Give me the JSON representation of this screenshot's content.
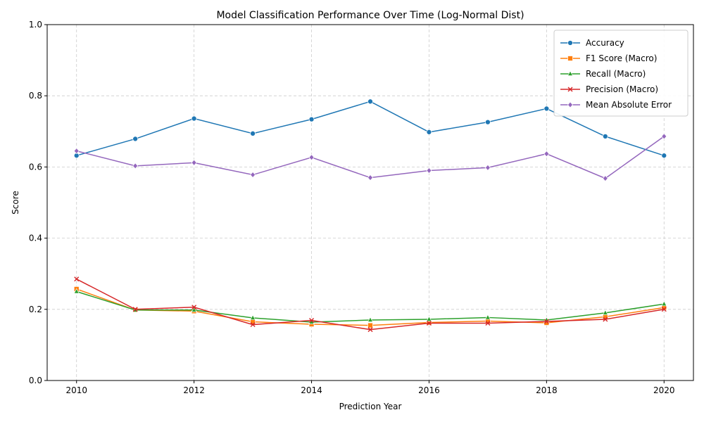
{
  "chart_data": {
    "type": "line",
    "title": "Model Classification Performance Over Time (Log-Normal Dist)",
    "xlabel": "Prediction Year",
    "ylabel": "Score",
    "x": [
      2010,
      2011,
      2012,
      2013,
      2014,
      2015,
      2016,
      2017,
      2018,
      2019,
      2020
    ],
    "xlim": [
      2009.5,
      2020.5
    ],
    "ylim": [
      0,
      1
    ],
    "xticks": [
      2010,
      2012,
      2014,
      2016,
      2018,
      2020
    ],
    "yticks": [
      0.0,
      0.2,
      0.4,
      0.6,
      0.8,
      1.0
    ],
    "ytick_labels": [
      "0.0",
      "0.2",
      "0.4",
      "0.6",
      "0.8",
      "1.0"
    ],
    "grid": true,
    "legend_position": "top-right",
    "series": [
      {
        "name": "Accuracy",
        "color": "#1f77b4",
        "marker": "circle",
        "values": [
          0.632,
          0.679,
          0.736,
          0.694,
          0.734,
          0.784,
          0.698,
          0.726,
          0.764,
          0.686,
          0.632
        ]
      },
      {
        "name": "F1 Score (Macro)",
        "color": "#ff7f0e",
        "marker": "square",
        "values": [
          0.257,
          0.198,
          0.195,
          0.165,
          0.158,
          0.155,
          0.163,
          0.167,
          0.162,
          0.179,
          0.205
        ]
      },
      {
        "name": "Recall (Macro)",
        "color": "#2ca02c",
        "marker": "triangle",
        "values": [
          0.25,
          0.198,
          0.198,
          0.176,
          0.164,
          0.17,
          0.172,
          0.177,
          0.17,
          0.19,
          0.215
        ]
      },
      {
        "name": "Precision (Macro)",
        "color": "#d62728",
        "marker": "x",
        "values": [
          0.285,
          0.2,
          0.206,
          0.157,
          0.169,
          0.143,
          0.161,
          0.161,
          0.166,
          0.172,
          0.2
        ]
      },
      {
        "name": "Mean Absolute Error",
        "color": "#9467bd",
        "marker": "diamond",
        "values": [
          0.645,
          0.603,
          0.612,
          0.578,
          0.627,
          0.57,
          0.59,
          0.598,
          0.637,
          0.568,
          0.686
        ]
      }
    ]
  }
}
